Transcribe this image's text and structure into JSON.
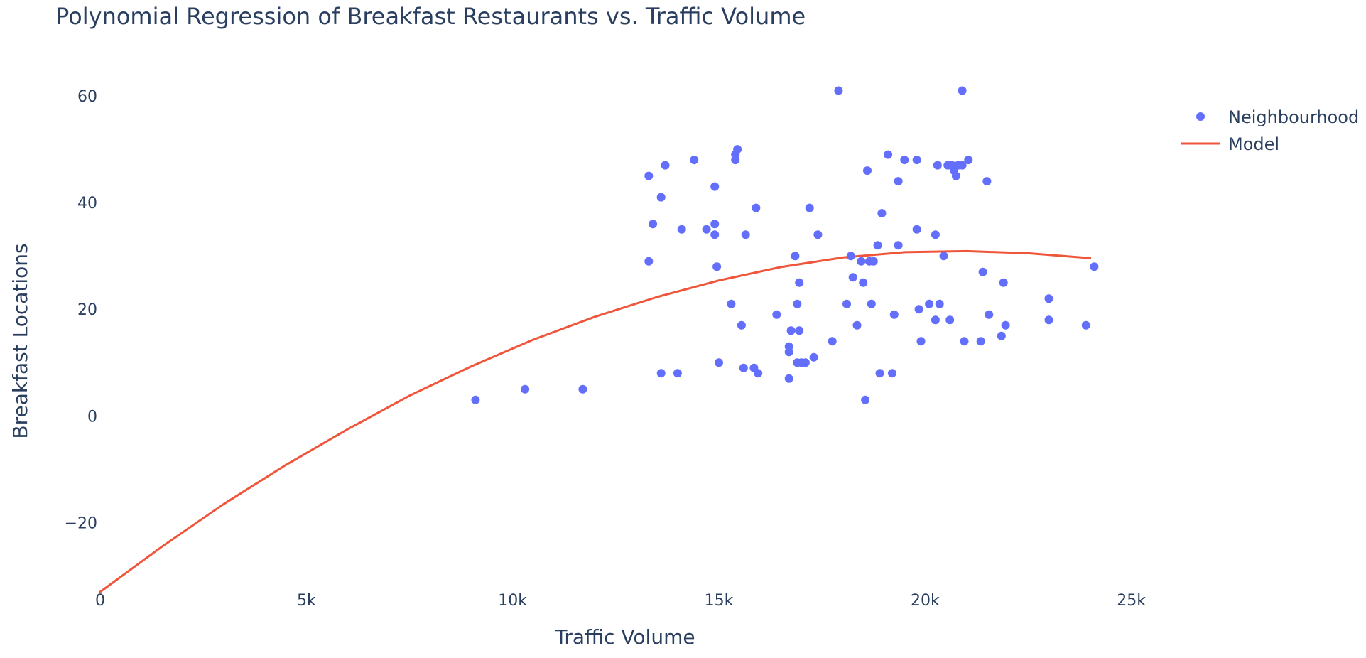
{
  "chart_data": {
    "type": "scatter",
    "title": "Polynomial Regression of Breakfast Restaurants vs. Traffic Volume",
    "xlabel": "Traffic Volume",
    "ylabel": "Breakfast Locations",
    "xlim": [
      0,
      30000
    ],
    "ylim": [
      -33,
      68
    ],
    "grid": false,
    "legend_position": "top-right",
    "x_ticks": [
      {
        "value": 0,
        "label": "0"
      },
      {
        "value": 5000,
        "label": "5k"
      },
      {
        "value": 10000,
        "label": "10k"
      },
      {
        "value": 15000,
        "label": "15k"
      },
      {
        "value": 20000,
        "label": "20k"
      },
      {
        "value": 25000,
        "label": "25k"
      }
    ],
    "y_ticks": [
      {
        "value": -20,
        "label": "−20"
      },
      {
        "value": 0,
        "label": "0"
      },
      {
        "value": 20,
        "label": "20"
      },
      {
        "value": 40,
        "label": "40"
      },
      {
        "value": 60,
        "label": "60"
      }
    ],
    "series": [
      {
        "name": "Neighbourhood",
        "kind": "scatter",
        "color": "#636efa",
        "points": [
          [
            9100,
            3
          ],
          [
            10300,
            5
          ],
          [
            11700,
            5
          ],
          [
            13300,
            45
          ],
          [
            13400,
            36
          ],
          [
            13300,
            29
          ],
          [
            13600,
            41
          ],
          [
            13700,
            47
          ],
          [
            13600,
            8
          ],
          [
            14000,
            8
          ],
          [
            14100,
            35
          ],
          [
            14400,
            48
          ],
          [
            14700,
            35
          ],
          [
            14900,
            43
          ],
          [
            14900,
            36
          ],
          [
            14900,
            34
          ],
          [
            14950,
            28
          ],
          [
            15000,
            10
          ],
          [
            15300,
            21
          ],
          [
            15400,
            48
          ],
          [
            15400,
            49
          ],
          [
            15450,
            50
          ],
          [
            15550,
            17
          ],
          [
            15600,
            9
          ],
          [
            15650,
            34
          ],
          [
            15850,
            9
          ],
          [
            15900,
            39
          ],
          [
            15950,
            8
          ],
          [
            16400,
            19
          ],
          [
            16700,
            12
          ],
          [
            16700,
            13
          ],
          [
            16700,
            7
          ],
          [
            16750,
            16
          ],
          [
            16850,
            30
          ],
          [
            16900,
            21
          ],
          [
            16900,
            10
          ],
          [
            16950,
            16
          ],
          [
            17000,
            10
          ],
          [
            16950,
            25
          ],
          [
            17100,
            10
          ],
          [
            17200,
            39
          ],
          [
            17300,
            11
          ],
          [
            17400,
            34
          ],
          [
            17750,
            14
          ],
          [
            17900,
            61
          ],
          [
            18100,
            21
          ],
          [
            18200,
            30
          ],
          [
            18250,
            26
          ],
          [
            18350,
            17
          ],
          [
            18450,
            29
          ],
          [
            18500,
            25
          ],
          [
            18550,
            3
          ],
          [
            18600,
            46
          ],
          [
            18650,
            29
          ],
          [
            18700,
            21
          ],
          [
            18750,
            29
          ],
          [
            18850,
            32
          ],
          [
            18900,
            8
          ],
          [
            18950,
            38
          ],
          [
            19100,
            49
          ],
          [
            19200,
            8
          ],
          [
            19250,
            19
          ],
          [
            19350,
            32
          ],
          [
            19350,
            44
          ],
          [
            19500,
            48
          ],
          [
            19800,
            48
          ],
          [
            19800,
            35
          ],
          [
            19850,
            20
          ],
          [
            19900,
            14
          ],
          [
            20100,
            21
          ],
          [
            20250,
            34
          ],
          [
            20250,
            18
          ],
          [
            20300,
            47
          ],
          [
            20350,
            21
          ],
          [
            20450,
            30
          ],
          [
            20550,
            47
          ],
          [
            20600,
            18
          ],
          [
            20650,
            47
          ],
          [
            20700,
            46
          ],
          [
            20750,
            45
          ],
          [
            20800,
            47
          ],
          [
            20900,
            47
          ],
          [
            20900,
            61
          ],
          [
            20950,
            14
          ],
          [
            21050,
            48
          ],
          [
            21350,
            14
          ],
          [
            21400,
            27
          ],
          [
            21500,
            44
          ],
          [
            21550,
            19
          ],
          [
            21850,
            15
          ],
          [
            21900,
            25
          ],
          [
            21950,
            17
          ],
          [
            23000,
            22
          ],
          [
            23000,
            18
          ],
          [
            23900,
            17
          ],
          [
            24100,
            28
          ]
        ]
      },
      {
        "name": "Model",
        "kind": "line",
        "color": "#ef553b",
        "points": [
          [
            0,
            -33
          ],
          [
            1500,
            -24.5
          ],
          [
            3000,
            -16.5
          ],
          [
            4500,
            -9.2
          ],
          [
            6000,
            -2.5
          ],
          [
            7500,
            3.8
          ],
          [
            9000,
            9.3
          ],
          [
            10500,
            14.3
          ],
          [
            12000,
            18.6
          ],
          [
            13500,
            22.3
          ],
          [
            15000,
            25.4
          ],
          [
            16500,
            27.9
          ],
          [
            18000,
            29.7
          ],
          [
            19500,
            30.7
          ],
          [
            21000,
            30.9
          ],
          [
            22500,
            30.5
          ],
          [
            24000,
            29.6
          ]
        ]
      }
    ]
  }
}
